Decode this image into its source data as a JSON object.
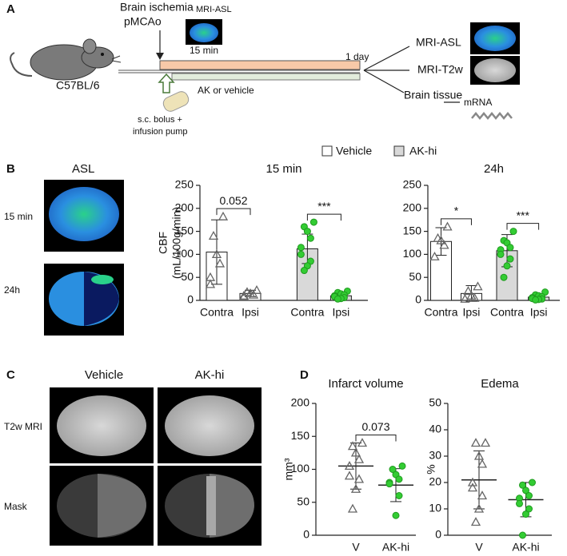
{
  "panels": [
    "A",
    "B",
    "C",
    "D"
  ],
  "panel_a": {
    "strain": "C57BL/6",
    "ischemia": [
      "Brain ischemia",
      "pMCAo"
    ],
    "mri_asl_early": "MRI-ASL",
    "early_time": "15 min",
    "end_time": "1 day",
    "treatment": "AK or vehicle",
    "delivery": [
      "s.c. bolus +",
      "infusion pump"
    ],
    "outputs": [
      "MRI-ASL",
      "MRI-T2w",
      "Brain tissue"
    ],
    "mrna": "mRNA"
  },
  "panel_b": {
    "title": "ASL",
    "rows": [
      "15 min",
      "24h"
    ]
  },
  "panel_c": {
    "columns": [
      "Vehicle",
      "AK-hi"
    ],
    "rows": [
      "T2w MRI",
      "Mask"
    ]
  },
  "legend": [
    {
      "name": "Vehicle",
      "color": "#ffffff"
    },
    {
      "name": "AK-hi",
      "color": "#d9d9d9"
    }
  ],
  "chart_data": [
    {
      "type": "bar",
      "title": "15 min",
      "ylabel": [
        "CBF",
        "(mL/100g/min)"
      ],
      "categories": [
        "Contra",
        "Ipsi",
        "Contra",
        "Ipsi"
      ],
      "ylim": [
        0,
        250
      ],
      "yticks": [
        0,
        50,
        100,
        150,
        200,
        250
      ],
      "groups": [
        {
          "mean": 105,
          "sd": 70,
          "fill": "#ffffff",
          "marker": "triangle",
          "point_color": "#666666",
          "points": [
            182,
            140,
            100,
            80,
            50,
            35
          ]
        },
        {
          "mean": 15,
          "sd": 7,
          "fill": "#ffffff",
          "marker": "triangle",
          "point_color": "#666666",
          "points": [
            22,
            18,
            15,
            12,
            10,
            8
          ]
        },
        {
          "mean": 112,
          "sd": 32,
          "fill": "#d9d9d9",
          "marker": "circle",
          "point_color": "#33cc33",
          "points": [
            170,
            160,
            150,
            135,
            115,
            100,
            85,
            75,
            65
          ]
        },
        {
          "mean": 10,
          "sd": 5,
          "fill": "#d9d9d9",
          "marker": "circle",
          "point_color": "#33cc33",
          "points": [
            20,
            17,
            14,
            12,
            10,
            8,
            6,
            4,
            3
          ]
        }
      ],
      "annotations": [
        "0.052",
        "***"
      ]
    },
    {
      "type": "bar",
      "title": "24h",
      "categories": [
        "Contra",
        "Ipsi",
        "Contra",
        "Ipsi"
      ],
      "ylim": [
        0,
        250
      ],
      "yticks": [
        0,
        50,
        100,
        150,
        200,
        250
      ],
      "groups": [
        {
          "mean": 128,
          "sd": 30,
          "fill": "#ffffff",
          "marker": "triangle",
          "point_color": "#666666",
          "points": [
            160,
            135,
            130,
            120,
            95
          ]
        },
        {
          "mean": 15,
          "sd": 17,
          "fill": "#ffffff",
          "marker": "triangle",
          "point_color": "#666666",
          "points": [
            30,
            20,
            10,
            5,
            3
          ]
        },
        {
          "mean": 108,
          "sd": 35,
          "fill": "#d9d9d9",
          "marker": "circle",
          "point_color": "#33cc33",
          "points": [
            150,
            130,
            125,
            115,
            110,
            100,
            90,
            75,
            50
          ]
        },
        {
          "mean": 7,
          "sd": 6,
          "fill": "#d9d9d9",
          "marker": "circle",
          "point_color": "#33cc33",
          "points": [
            18,
            12,
            10,
            8,
            6,
            4,
            3,
            2,
            1
          ]
        }
      ],
      "annotations": [
        "*",
        "***"
      ]
    },
    {
      "type": "dotplot",
      "title": "Infarct volume",
      "ylabel": [
        "mm³"
      ],
      "categories": [
        "V",
        "AK-hi"
      ],
      "ylim": [
        0,
        200
      ],
      "yticks": [
        0,
        50,
        100,
        150,
        200
      ],
      "groups": [
        {
          "mean": 105,
          "sd": 35,
          "marker": "triangle",
          "point_color": "#666666",
          "points": [
            140,
            135,
            125,
            115,
            105,
            90,
            85,
            70,
            40
          ]
        },
        {
          "mean": 76,
          "sd": 25,
          "marker": "circle",
          "point_color": "#33cc33",
          "points": [
            105,
            100,
            92,
            85,
            80,
            78,
            60,
            30
          ]
        }
      ],
      "annotations": [
        "0.073"
      ]
    },
    {
      "type": "dotplot",
      "title": "Edema",
      "ylabel": [
        "%"
      ],
      "categories": [
        "V",
        "AK-hi"
      ],
      "ylim": [
        0,
        50
      ],
      "yticks": [
        0,
        10,
        20,
        30,
        40,
        50
      ],
      "groups": [
        {
          "mean": 21,
          "sd": 11,
          "marker": "triangle",
          "point_color": "#666666",
          "points": [
            35,
            35,
            30,
            27,
            20,
            18,
            15,
            10,
            5
          ]
        },
        {
          "mean": 13.5,
          "sd": 6.5,
          "marker": "circle",
          "point_color": "#33cc33",
          "points": [
            20,
            19,
            17,
            15,
            14,
            12,
            10,
            8,
            0
          ]
        }
      ]
    }
  ]
}
